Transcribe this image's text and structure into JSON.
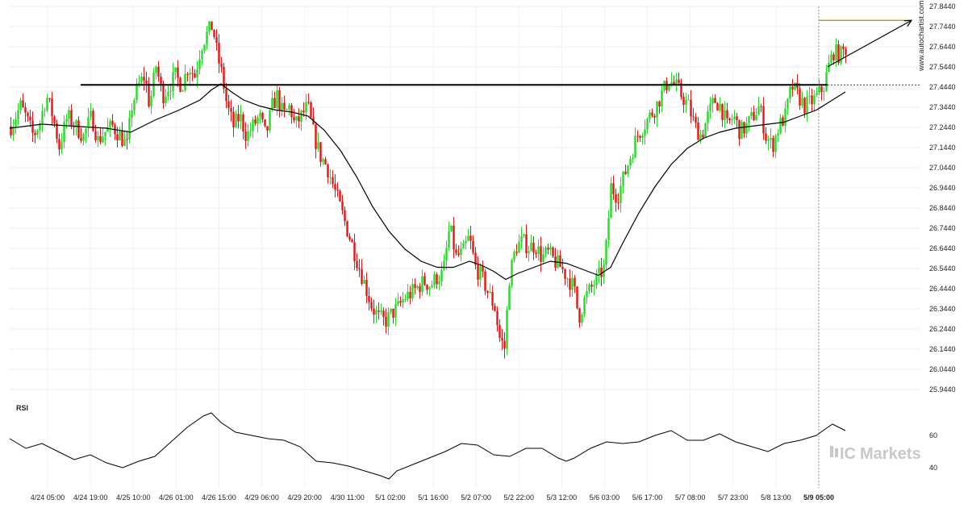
{
  "site_label": "www.autochartist.com",
  "brand": {
    "prefix": "IC",
    "name": "Markets"
  },
  "chart_data": {
    "type": "candlestick",
    "price_axis": {
      "ticks": [
        "27.8440",
        "27.7440",
        "27.6440",
        "27.5440",
        "27.4440",
        "27.3440",
        "27.2440",
        "27.1440",
        "27.0440",
        "26.9440",
        "26.8440",
        "26.7440",
        "26.6440",
        "26.5440",
        "26.4440",
        "26.3440",
        "26.2440",
        "26.1440",
        "26.0440",
        "25.9440"
      ],
      "range": [
        25.944,
        27.844
      ]
    },
    "time_axis": {
      "ticks": [
        "4/24 05:00",
        "4/24 19:00",
        "4/25 10:00",
        "4/26 01:00",
        "4/26 15:00",
        "4/29 06:00",
        "4/29 20:00",
        "4/30 11:00",
        "5/1 02:00",
        "5/1 16:00",
        "5/2 07:00",
        "5/2 22:00",
        "5/3 12:00",
        "5/6 03:00",
        "5/6 17:00",
        "5/7 08:00",
        "5/7 23:00",
        "5/8 13:00",
        "5/9 05:00"
      ],
      "highlighted": "5/9 05:00"
    },
    "close_path": [
      [
        0,
        27.25
      ],
      [
        12,
        27.35
      ],
      [
        18,
        27.3
      ],
      [
        28,
        27.2
      ],
      [
        36,
        27.27
      ],
      [
        44,
        27.4
      ],
      [
        52,
        27.3
      ],
      [
        60,
        27.15
      ],
      [
        70,
        27.3
      ],
      [
        80,
        27.25
      ],
      [
        90,
        27.2
      ],
      [
        100,
        27.3
      ],
      [
        108,
        27.18
      ],
      [
        116,
        27.22
      ],
      [
        126,
        27.25
      ],
      [
        136,
        27.2
      ],
      [
        144,
        27.15
      ],
      [
        150,
        27.35
      ],
      [
        158,
        27.45
      ],
      [
        166,
        27.5
      ],
      [
        172,
        27.35
      ],
      [
        180,
        27.55
      ],
      [
        188,
        27.4
      ],
      [
        196,
        27.45
      ],
      [
        204,
        27.5
      ],
      [
        212,
        27.45
      ],
      [
        220,
        27.55
      ],
      [
        228,
        27.5
      ],
      [
        236,
        27.65
      ],
      [
        242,
        27.7
      ],
      [
        250,
        27.75
      ],
      [
        256,
        27.6
      ],
      [
        262,
        27.5
      ],
      [
        268,
        27.35
      ],
      [
        276,
        27.25
      ],
      [
        284,
        27.3
      ],
      [
        292,
        27.2
      ],
      [
        300,
        27.25
      ],
      [
        308,
        27.3
      ],
      [
        316,
        27.2
      ],
      [
        324,
        27.35
      ],
      [
        330,
        27.4
      ],
      [
        338,
        27.3
      ],
      [
        346,
        27.35
      ],
      [
        352,
        27.25
      ],
      [
        360,
        27.3
      ],
      [
        368,
        27.35
      ],
      [
        376,
        27.2
      ],
      [
        384,
        27.1
      ],
      [
        392,
        27.05
      ],
      [
        400,
        26.95
      ],
      [
        408,
        26.85
      ],
      [
        416,
        26.75
      ],
      [
        424,
        26.65
      ],
      [
        432,
        26.55
      ],
      [
        440,
        26.45
      ],
      [
        448,
        26.35
      ],
      [
        456,
        26.3
      ],
      [
        464,
        26.28
      ],
      [
        472,
        26.32
      ],
      [
        480,
        26.35
      ],
      [
        488,
        26.4
      ],
      [
        496,
        26.42
      ],
      [
        504,
        26.45
      ],
      [
        512,
        26.48
      ],
      [
        520,
        26.46
      ],
      [
        528,
        26.5
      ],
      [
        536,
        26.52
      ],
      [
        544,
        26.75
      ],
      [
        552,
        26.6
      ],
      [
        560,
        26.62
      ],
      [
        568,
        26.7
      ],
      [
        576,
        26.55
      ],
      [
        584,
        26.5
      ],
      [
        592,
        26.42
      ],
      [
        600,
        26.35
      ],
      [
        606,
        26.2
      ],
      [
        612,
        26.15
      ],
      [
        618,
        26.5
      ],
      [
        626,
        26.65
      ],
      [
        634,
        26.68
      ],
      [
        642,
        26.65
      ],
      [
        650,
        26.66
      ],
      [
        658,
        26.6
      ],
      [
        666,
        26.62
      ],
      [
        674,
        26.58
      ],
      [
        682,
        26.55
      ],
      [
        690,
        26.5
      ],
      [
        698,
        26.45
      ],
      [
        704,
        26.3
      ],
      [
        712,
        26.4
      ],
      [
        720,
        26.45
      ],
      [
        728,
        26.5
      ],
      [
        736,
        26.55
      ],
      [
        744,
        26.95
      ],
      [
        752,
        26.9
      ],
      [
        760,
        27.0
      ],
      [
        768,
        27.1
      ],
      [
        776,
        27.2
      ],
      [
        784,
        27.25
      ],
      [
        792,
        27.3
      ],
      [
        800,
        27.35
      ],
      [
        808,
        27.42
      ],
      [
        816,
        27.48
      ],
      [
        824,
        27.45
      ],
      [
        832,
        27.4
      ],
      [
        840,
        27.35
      ],
      [
        848,
        27.25
      ],
      [
        856,
        27.2
      ],
      [
        864,
        27.3
      ],
      [
        872,
        27.38
      ],
      [
        880,
        27.35
      ],
      [
        888,
        27.25
      ],
      [
        896,
        27.3
      ],
      [
        904,
        27.22
      ],
      [
        912,
        27.25
      ],
      [
        920,
        27.3
      ],
      [
        928,
        27.35
      ],
      [
        936,
        27.2
      ],
      [
        944,
        27.15
      ],
      [
        952,
        27.25
      ],
      [
        960,
        27.3
      ],
      [
        968,
        27.45
      ],
      [
        976,
        27.4
      ],
      [
        984,
        27.35
      ],
      [
        992,
        27.37
      ],
      [
        1000,
        27.4
      ],
      [
        1008,
        27.45
      ],
      [
        1014,
        27.55
      ],
      [
        1020,
        27.62
      ],
      [
        1028,
        27.6
      ],
      [
        1036,
        27.64
      ]
    ],
    "moving_average": [
      [
        0,
        27.24
      ],
      [
        40,
        27.26
      ],
      [
        80,
        27.25
      ],
      [
        120,
        27.24
      ],
      [
        150,
        27.22
      ],
      [
        180,
        27.28
      ],
      [
        210,
        27.33
      ],
      [
        236,
        27.38
      ],
      [
        250,
        27.43
      ],
      [
        262,
        27.46
      ],
      [
        275,
        27.42
      ],
      [
        290,
        27.38
      ],
      [
        310,
        27.35
      ],
      [
        330,
        27.33
      ],
      [
        350,
        27.32
      ],
      [
        370,
        27.3
      ],
      [
        390,
        27.23
      ],
      [
        410,
        27.13
      ],
      [
        430,
        27.0
      ],
      [
        450,
        26.85
      ],
      [
        470,
        26.73
      ],
      [
        490,
        26.64
      ],
      [
        510,
        26.58
      ],
      [
        530,
        26.55
      ],
      [
        550,
        26.55
      ],
      [
        570,
        26.58
      ],
      [
        585,
        26.56
      ],
      [
        600,
        26.53
      ],
      [
        615,
        26.49
      ],
      [
        630,
        26.52
      ],
      [
        650,
        26.55
      ],
      [
        670,
        26.58
      ],
      [
        690,
        26.57
      ],
      [
        710,
        26.54
      ],
      [
        730,
        26.51
      ],
      [
        745,
        26.55
      ],
      [
        760,
        26.67
      ],
      [
        780,
        26.82
      ],
      [
        800,
        26.95
      ],
      [
        820,
        27.06
      ],
      [
        840,
        27.14
      ],
      [
        860,
        27.19
      ],
      [
        880,
        27.22
      ],
      [
        900,
        27.24
      ],
      [
        920,
        27.25
      ],
      [
        940,
        27.26
      ],
      [
        960,
        27.27
      ],
      [
        980,
        27.3
      ],
      [
        1000,
        27.33
      ],
      [
        1020,
        27.38
      ],
      [
        1036,
        27.42
      ]
    ],
    "resistance_level": 27.455,
    "target_level": 27.775,
    "channel": {
      "from": [
        1014,
        27.545
      ],
      "to": [
        1130,
        27.775
      ]
    },
    "rsi": {
      "label": "RSI",
      "ticks": [
        "60",
        "40"
      ],
      "range": [
        30,
        80
      ],
      "values": [
        [
          0,
          58
        ],
        [
          20,
          52
        ],
        [
          40,
          55
        ],
        [
          60,
          50
        ],
        [
          80,
          45
        ],
        [
          100,
          48
        ],
        [
          120,
          43
        ],
        [
          140,
          40
        ],
        [
          160,
          44
        ],
        [
          180,
          47
        ],
        [
          200,
          56
        ],
        [
          220,
          65
        ],
        [
          240,
          72
        ],
        [
          250,
          74
        ],
        [
          262,
          68
        ],
        [
          280,
          62
        ],
        [
          300,
          60
        ],
        [
          320,
          58
        ],
        [
          340,
          57
        ],
        [
          360,
          53
        ],
        [
          380,
          44
        ],
        [
          400,
          43
        ],
        [
          420,
          41
        ],
        [
          440,
          38
        ],
        [
          460,
          35
        ],
        [
          470,
          33
        ],
        [
          480,
          38
        ],
        [
          500,
          42
        ],
        [
          520,
          46
        ],
        [
          540,
          50
        ],
        [
          560,
          55
        ],
        [
          580,
          54
        ],
        [
          600,
          48
        ],
        [
          620,
          47
        ],
        [
          640,
          52
        ],
        [
          660,
          52
        ],
        [
          680,
          46
        ],
        [
          690,
          44
        ],
        [
          700,
          46
        ],
        [
          720,
          52
        ],
        [
          740,
          56
        ],
        [
          760,
          55
        ],
        [
          780,
          56
        ],
        [
          800,
          60
        ],
        [
          820,
          63
        ],
        [
          840,
          57
        ],
        [
          860,
          57
        ],
        [
          880,
          61
        ],
        [
          900,
          56
        ],
        [
          920,
          53
        ],
        [
          940,
          50
        ],
        [
          960,
          55
        ],
        [
          980,
          57
        ],
        [
          1000,
          60
        ],
        [
          1014,
          65
        ],
        [
          1020,
          67
        ],
        [
          1036,
          63
        ]
      ]
    }
  }
}
